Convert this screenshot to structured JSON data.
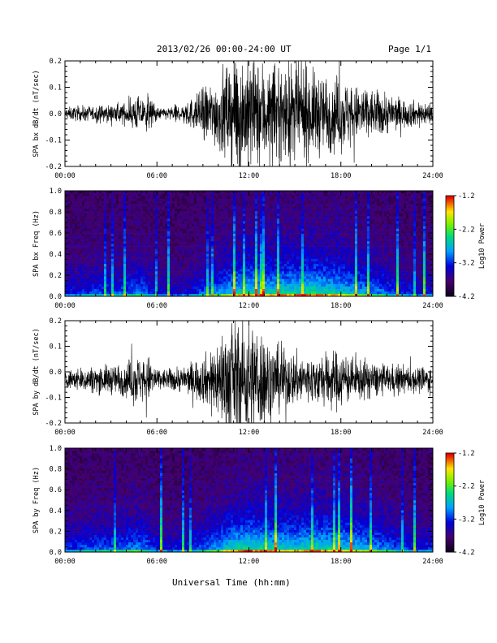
{
  "header": {
    "title": "2013/02/26  00:00-24:00 UT",
    "page": "Page 1/1"
  },
  "footer": {
    "xlabel": "Universal Time (hh:mm)"
  },
  "chart_data": [
    {
      "type": "line",
      "ylabel": "SPA bx dB/dt (nT/sec)",
      "xlim": [
        0,
        24
      ],
      "ylim": [
        -0.2,
        0.2
      ],
      "xticks": [
        "00:00",
        "06:00",
        "12:00",
        "18:00",
        "24:00"
      ],
      "yticks": [
        "0.2",
        "0.1",
        "0.0",
        "-0.1",
        "-0.2"
      ],
      "ytick_values": [
        0.2,
        0.1,
        0.0,
        -0.1,
        -0.2
      ],
      "series": [
        {
          "x": [
            0,
            1,
            2,
            3,
            4,
            4.7,
            5,
            5.5,
            6,
            6.5,
            7,
            7.5,
            8,
            8.5,
            9,
            9.5,
            10,
            10.5,
            11,
            11.5,
            12,
            12.5,
            13,
            13.5,
            14,
            14.5,
            15,
            15.5,
            16,
            16.5,
            17,
            17.5,
            18,
            18.5,
            19,
            19.5,
            20,
            21,
            22,
            23,
            24
          ],
          "amplitude": [
            0.02,
            0.025,
            0.025,
            0.03,
            0.035,
            0.06,
            0.05,
            0.06,
            0.02,
            0.02,
            0.025,
            0.03,
            0.045,
            0.055,
            0.09,
            0.1,
            0.12,
            0.17,
            0.2,
            0.2,
            0.2,
            0.17,
            0.18,
            0.15,
            0.16,
            0.17,
            0.16,
            0.15,
            0.14,
            0.14,
            0.13,
            0.13,
            0.12,
            0.11,
            0.09,
            0.1,
            0.08,
            0.07,
            0.05,
            0.04,
            0.04
          ],
          "offset": [
            0.0,
            0.0,
            0.0,
            0.0,
            0.0,
            0.0,
            0.0,
            0.0,
            0.0,
            0.0,
            0.0,
            0.0,
            0.0,
            0.0,
            0.0,
            0.0,
            0.0,
            0.0,
            0.0,
            0.0,
            0.0,
            0.0,
            0.0,
            0.0,
            0.0,
            0.0,
            0.0,
            0.0,
            0.0,
            0.0,
            0.0,
            0.0,
            0.0,
            0.0,
            0.0,
            0.0,
            0.0,
            0.0,
            0.0,
            0.0,
            0.0
          ]
        }
      ]
    },
    {
      "type": "heatmap",
      "ylabel": "SPA bx Freq (Hz)",
      "xlim": [
        0,
        24
      ],
      "ylim": [
        0,
        1.0
      ],
      "xticks": [
        "00:00",
        "06:00",
        "12:00",
        "18:00",
        "24:00"
      ],
      "yticks": [
        "1.0",
        "0.8",
        "0.6",
        "0.4",
        "0.2",
        "0.0"
      ],
      "ytick_values": [
        1.0,
        0.8,
        0.6,
        0.4,
        0.2,
        0.0
      ],
      "colorbar": {
        "label": "Log10 Power",
        "range": [
          -4.2,
          -1.2
        ],
        "ticks": [
          "-1.2",
          "-2.2",
          "-3.2",
          "-4.2"
        ],
        "tick_values": [
          -1.2,
          -2.2,
          -3.2,
          -4.2
        ]
      },
      "activity_hours": [
        0,
        1,
        2,
        3,
        4,
        5,
        6,
        7,
        8,
        9,
        10,
        11,
        12,
        13,
        14,
        15,
        16,
        17,
        18,
        19,
        20,
        21,
        22,
        23,
        24
      ],
      "activity": [
        0.35,
        0.4,
        0.45,
        0.45,
        0.5,
        0.55,
        0.35,
        0.3,
        0.35,
        0.5,
        0.6,
        0.75,
        0.85,
        0.8,
        0.85,
        0.85,
        0.9,
        0.85,
        0.8,
        0.7,
        0.6,
        0.5,
        0.4,
        0.35,
        0.35
      ]
    },
    {
      "type": "line",
      "ylabel": "SPA by dB/dt (nT/sec)",
      "xlim": [
        0,
        24
      ],
      "ylim": [
        -0.2,
        0.2
      ],
      "xticks": [
        "00:00",
        "06:00",
        "12:00",
        "18:00",
        "24:00"
      ],
      "yticks": [
        "0.2",
        "0.1",
        "0.0",
        "-0.1",
        "-0.2"
      ],
      "ytick_values": [
        0.2,
        0.1,
        0.0,
        -0.1,
        -0.2
      ],
      "series": [
        {
          "x": [
            0,
            1,
            2,
            3,
            4,
            4.7,
            5,
            5.5,
            6,
            6.5,
            7,
            7.5,
            8,
            8.5,
            9,
            9.5,
            10,
            10.5,
            11,
            11.5,
            12,
            12.5,
            13,
            13.5,
            14,
            14.5,
            15,
            15.5,
            16,
            16.5,
            17,
            17.5,
            18,
            18.5,
            19,
            19.5,
            20,
            21,
            22,
            23,
            24
          ],
          "amplitude": [
            0.03,
            0.04,
            0.045,
            0.05,
            0.06,
            0.09,
            0.07,
            0.08,
            0.04,
            0.035,
            0.04,
            0.045,
            0.05,
            0.07,
            0.08,
            0.1,
            0.14,
            0.2,
            0.2,
            0.2,
            0.2,
            0.19,
            0.17,
            0.12,
            0.11,
            0.1,
            0.09,
            0.09,
            0.08,
            0.09,
            0.09,
            0.1,
            0.1,
            0.08,
            0.07,
            0.07,
            0.06,
            0.05,
            0.05,
            0.045,
            0.045
          ],
          "offset": [
            -0.03,
            -0.03,
            -0.03,
            -0.03,
            -0.03,
            -0.03,
            -0.03,
            -0.03,
            -0.03,
            -0.03,
            -0.03,
            -0.03,
            -0.03,
            -0.03,
            -0.03,
            -0.03,
            -0.03,
            -0.03,
            -0.03,
            -0.03,
            -0.03,
            -0.03,
            -0.03,
            -0.03,
            -0.03,
            -0.03,
            -0.03,
            -0.03,
            -0.03,
            -0.03,
            -0.03,
            -0.03,
            -0.03,
            -0.03,
            -0.03,
            -0.03,
            -0.03,
            -0.03,
            -0.03,
            -0.03,
            -0.03
          ]
        }
      ]
    },
    {
      "type": "heatmap",
      "ylabel": "SPA by Freq (Hz)",
      "xlim": [
        0,
        24
      ],
      "ylim": [
        0,
        1.0
      ],
      "xticks": [
        "00:00",
        "06:00",
        "12:00",
        "18:00",
        "24:00"
      ],
      "yticks": [
        "1.0",
        "0.8",
        "0.6",
        "0.4",
        "0.2",
        "0.0"
      ],
      "ytick_values": [
        1.0,
        0.8,
        0.6,
        0.4,
        0.2,
        0.0
      ],
      "colorbar": {
        "label": "Log10 Power",
        "range": [
          -4.2,
          -1.2
        ],
        "ticks": [
          "-1.2",
          "-2.2",
          "-3.2",
          "-4.2"
        ],
        "tick_values": [
          -1.2,
          -2.2,
          -3.2,
          -4.2
        ]
      },
      "activity_hours": [
        0,
        1,
        2,
        3,
        4,
        5,
        6,
        7,
        8,
        9,
        10,
        11,
        12,
        13,
        14,
        15,
        16,
        17,
        18,
        19,
        20,
        21,
        22,
        23,
        24
      ],
      "activity": [
        0.4,
        0.45,
        0.5,
        0.5,
        0.55,
        0.6,
        0.4,
        0.35,
        0.4,
        0.5,
        0.65,
        0.85,
        0.9,
        0.85,
        0.8,
        0.8,
        0.85,
        0.85,
        0.8,
        0.75,
        0.65,
        0.55,
        0.45,
        0.4,
        0.4
      ]
    }
  ]
}
